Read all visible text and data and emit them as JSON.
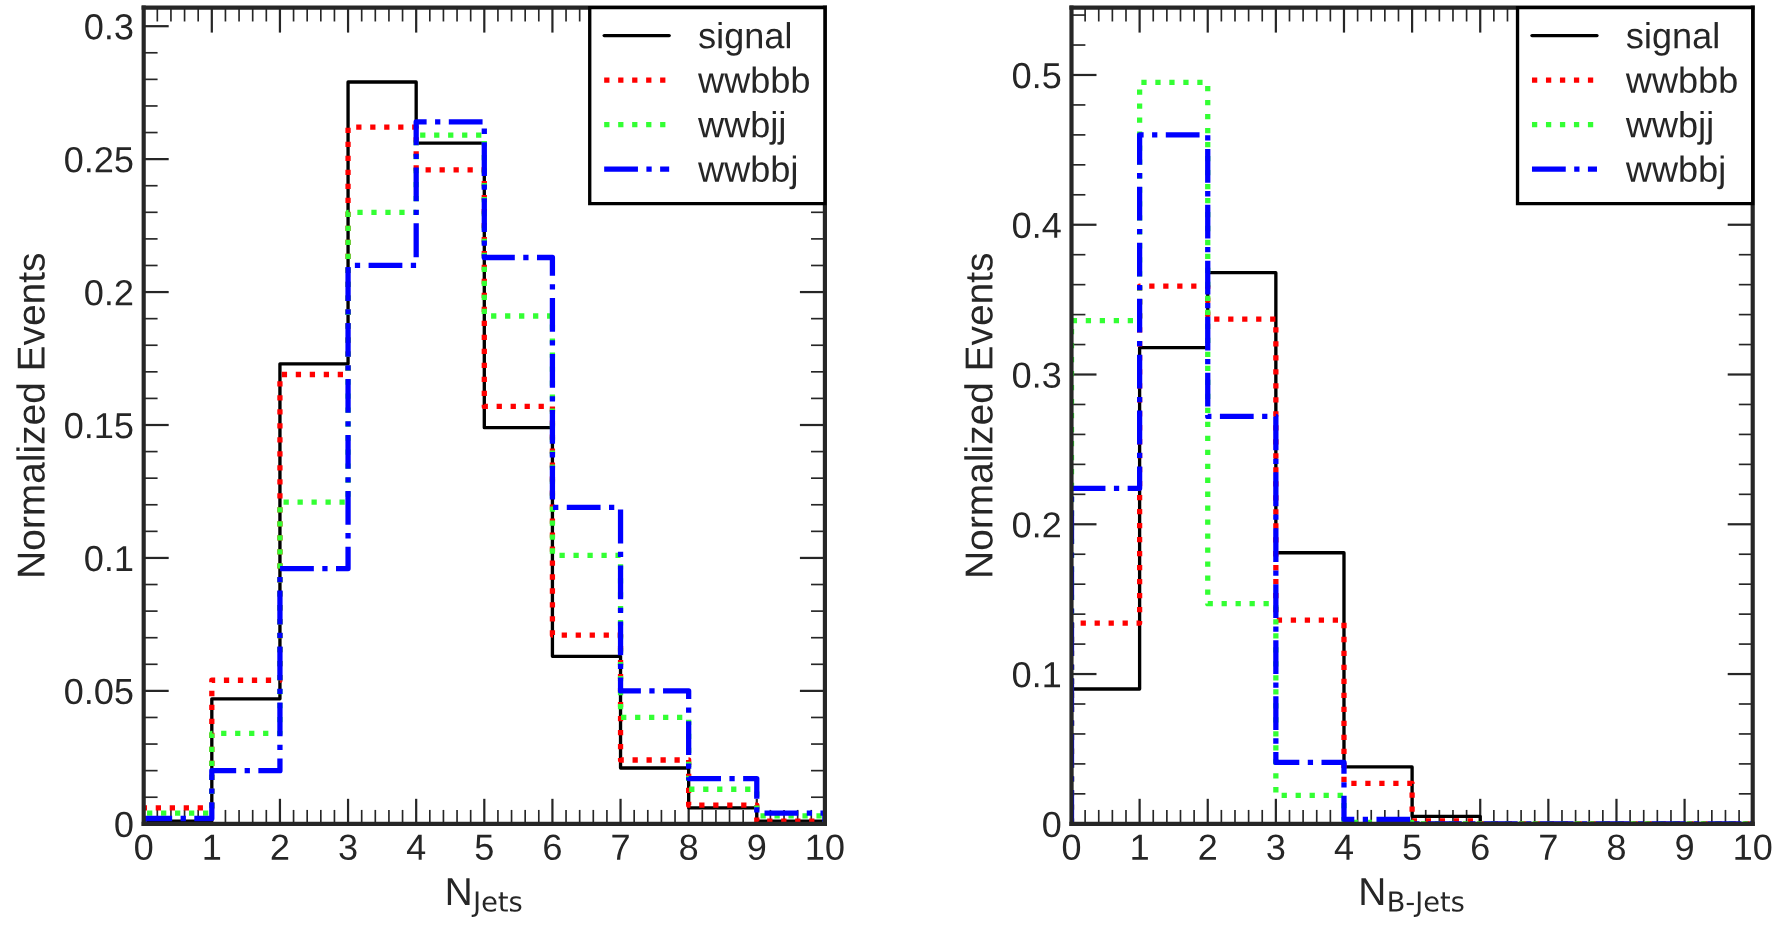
{
  "chart_data": [
    {
      "type": "histogram",
      "xlabel": "N$_{Jets}$",
      "ylabel": "Normalized Events",
      "bins": [
        0,
        1,
        2,
        3,
        4,
        5,
        6,
        7,
        8,
        9,
        10
      ],
      "series": [
        {
          "name": "signal",
          "color": "#000000",
          "line_style": "solid",
          "values": [
            0.001,
            0.047,
            0.173,
            0.279,
            0.256,
            0.149,
            0.063,
            0.021,
            0.006,
            0.001
          ]
        },
        {
          "name": "wwbbb",
          "color": "#ff0000",
          "line_style": "dotted",
          "values": [
            0.006,
            0.054,
            0.169,
            0.262,
            0.246,
            0.157,
            0.071,
            0.024,
            0.007,
            0.001
          ]
        },
        {
          "name": "wwbjj",
          "color": "#33ff33",
          "line_style": "dotted",
          "values": [
            0.004,
            0.034,
            0.121,
            0.23,
            0.259,
            0.191,
            0.101,
            0.04,
            0.013,
            0.003
          ]
        },
        {
          "name": "wwbbj",
          "color": "#0000ff",
          "line_style": "dashdot",
          "values": [
            0.002,
            0.02,
            0.096,
            0.21,
            0.264,
            0.213,
            0.119,
            0.05,
            0.017,
            0.004
          ]
        }
      ],
      "xlim": [
        0,
        10
      ],
      "ylim": [
        0,
        0.307
      ],
      "xticks": [
        0,
        1,
        2,
        3,
        4,
        5,
        6,
        7,
        8,
        9,
        10
      ],
      "yticks": [
        0,
        0.05,
        0.1,
        0.15,
        0.2,
        0.25,
        0.3
      ],
      "legend": "top right",
      "grid": false
    },
    {
      "type": "histogram",
      "xlabel": "N$_{B-Jets}$",
      "ylabel": "Normalized Events",
      "bins": [
        0,
        1,
        2,
        3,
        4,
        5,
        6,
        7,
        8,
        9,
        10
      ],
      "series": [
        {
          "name": "signal",
          "color": "#000000",
          "line_style": "solid",
          "values": [
            0.09,
            0.318,
            0.368,
            0.181,
            0.038,
            0.005,
            0,
            0,
            0,
            0
          ]
        },
        {
          "name": "wwbbb",
          "color": "#ff0000",
          "line_style": "dotted",
          "values": [
            0.134,
            0.359,
            0.337,
            0.136,
            0.027,
            0.002,
            0,
            0,
            0,
            0
          ]
        },
        {
          "name": "wwbjj",
          "color": "#33ff33",
          "line_style": "dotted",
          "values": [
            0.336,
            0.495,
            0.147,
            0.019,
            0.001,
            0,
            0,
            0,
            0,
            0
          ]
        },
        {
          "name": "wwbbj",
          "color": "#0000ff",
          "line_style": "dashdot",
          "values": [
            0.224,
            0.46,
            0.272,
            0.041,
            0.003,
            0,
            0,
            0,
            0,
            0
          ]
        }
      ],
      "xlim": [
        0,
        10
      ],
      "ylim": [
        0,
        0.545
      ],
      "xticks": [
        0,
        1,
        2,
        3,
        4,
        5,
        6,
        7,
        8,
        9,
        10
      ],
      "yticks": [
        0,
        0.1,
        0.2,
        0.3,
        0.4,
        0.5
      ],
      "legend": "top right",
      "grid": false
    }
  ]
}
